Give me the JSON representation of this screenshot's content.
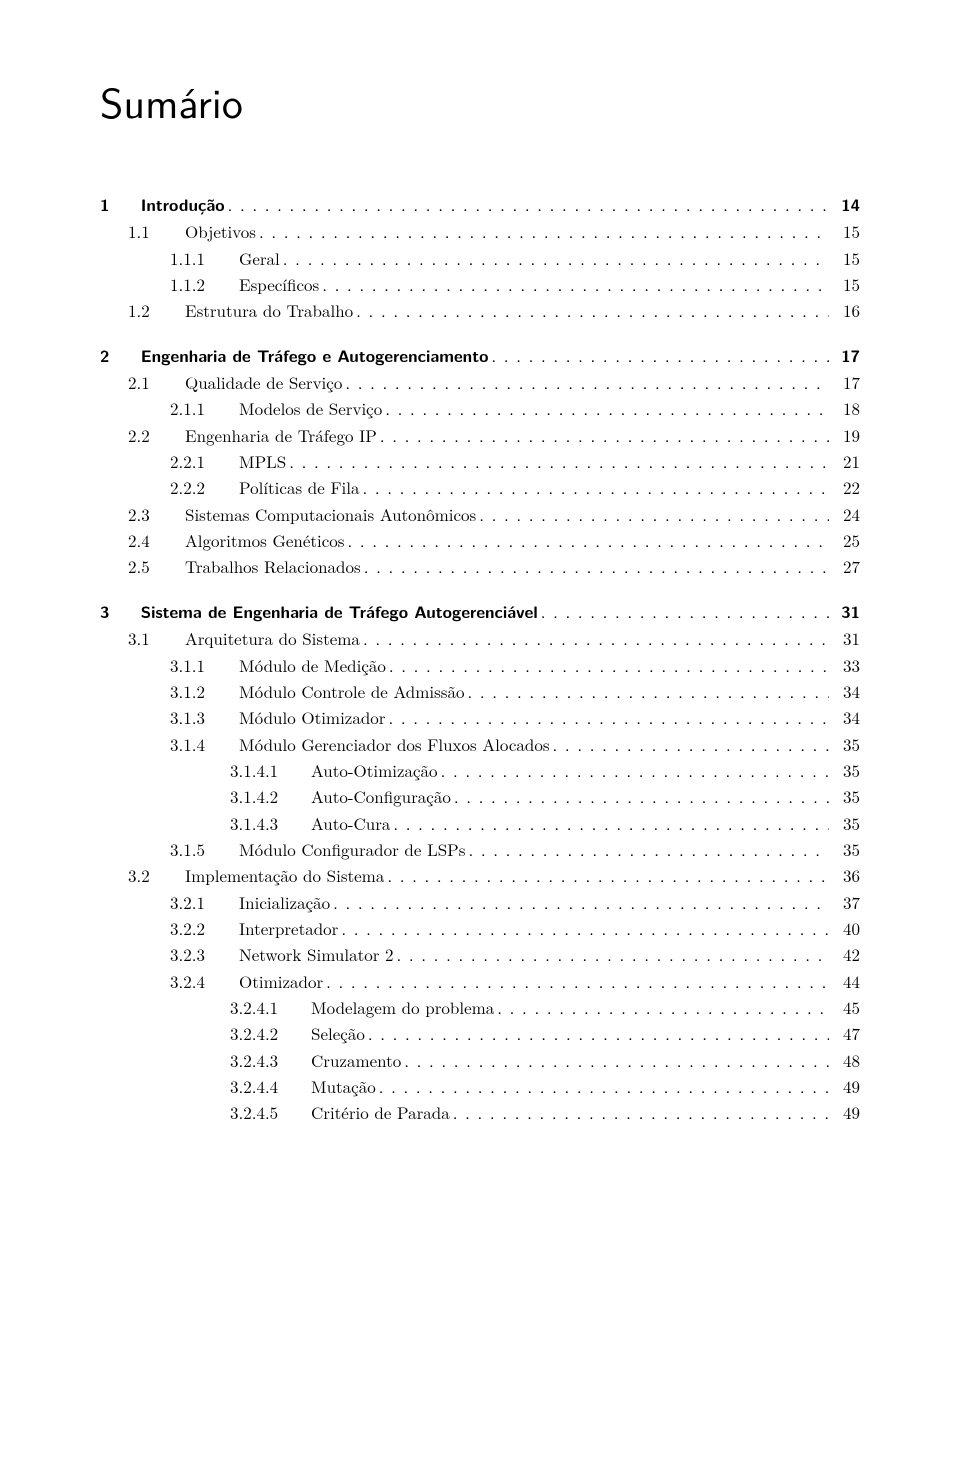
{
  "title": "Sumário",
  "entries": [
    {
      "level": 0,
      "num": "1",
      "text": "Introdução",
      "page": "14"
    },
    {
      "level": 1,
      "num": "1.1",
      "text": "Objetivos",
      "page": "15"
    },
    {
      "level": 2,
      "num": "1.1.1",
      "text": "Geral",
      "page": "15"
    },
    {
      "level": 2,
      "num": "1.1.2",
      "text": "Específicos",
      "page": "15"
    },
    {
      "level": 1,
      "num": "1.2",
      "text": "Estrutura do Trabalho",
      "page": "16"
    },
    {
      "level": 0,
      "num": "2",
      "text": "Engenharia de Tráfego e Autogerenciamento",
      "page": "17"
    },
    {
      "level": 1,
      "num": "2.1",
      "text": "Qualidade de Serviço",
      "page": "17"
    },
    {
      "level": 2,
      "num": "2.1.1",
      "text": "Modelos de Serviço",
      "page": "18"
    },
    {
      "level": 1,
      "num": "2.2",
      "text": "Engenharia de Tráfego IP",
      "page": "19"
    },
    {
      "level": 2,
      "num": "2.2.1",
      "text": "MPLS",
      "page": "21"
    },
    {
      "level": 2,
      "num": "2.2.2",
      "text": "Políticas de Fila",
      "page": "22"
    },
    {
      "level": 1,
      "num": "2.3",
      "text": "Sistemas Computacionais Autonômicos",
      "page": "24"
    },
    {
      "level": 1,
      "num": "2.4",
      "text": "Algoritmos Genéticos",
      "page": "25"
    },
    {
      "level": 1,
      "num": "2.5",
      "text": "Trabalhos Relacionados",
      "page": "27"
    },
    {
      "level": 0,
      "num": "3",
      "text": "Sistema de Engenharia de Tráfego Autogerenciável",
      "page": "31"
    },
    {
      "level": 1,
      "num": "3.1",
      "text": "Arquitetura do Sistema",
      "page": "31"
    },
    {
      "level": 2,
      "num": "3.1.1",
      "text": "Módulo de Medição",
      "page": "33"
    },
    {
      "level": 2,
      "num": "3.1.2",
      "text": "Módulo Controle de Admissão",
      "page": "34"
    },
    {
      "level": 2,
      "num": "3.1.3",
      "text": "Módulo Otimizador",
      "page": "34"
    },
    {
      "level": 2,
      "num": "3.1.4",
      "text": "Módulo Gerenciador dos Fluxos Alocados",
      "page": "35"
    },
    {
      "level": 3,
      "num": "3.1.4.1",
      "text": "Auto-Otimização",
      "page": "35"
    },
    {
      "level": 3,
      "num": "3.1.4.2",
      "text": "Auto-Configuração",
      "page": "35"
    },
    {
      "level": 3,
      "num": "3.1.4.3",
      "text": "Auto-Cura",
      "page": "35"
    },
    {
      "level": 2,
      "num": "3.1.5",
      "text": "Módulo Configurador de LSPs",
      "page": "35"
    },
    {
      "level": 1,
      "num": "3.2",
      "text": "Implementação do Sistema",
      "page": "36"
    },
    {
      "level": 2,
      "num": "3.2.1",
      "text": "Inicialização",
      "page": "37"
    },
    {
      "level": 2,
      "num": "3.2.2",
      "text": "Interpretador",
      "page": "40"
    },
    {
      "level": 2,
      "num": "3.2.3",
      "text": "Network Simulator 2",
      "page": "42"
    },
    {
      "level": 2,
      "num": "3.2.4",
      "text": "Otimizador",
      "page": "44"
    },
    {
      "level": 3,
      "num": "3.2.4.1",
      "text": "Modelagem do problema",
      "page": "45"
    },
    {
      "level": 3,
      "num": "3.2.4.2",
      "text": "Seleção",
      "page": "47"
    },
    {
      "level": 3,
      "num": "3.2.4.3",
      "text": "Cruzamento",
      "page": "48"
    },
    {
      "level": 3,
      "num": "3.2.4.4",
      "text": "Mutação",
      "page": "49"
    },
    {
      "level": 3,
      "num": "3.2.4.5",
      "text": "Critério de Parada",
      "page": "49"
    }
  ]
}
